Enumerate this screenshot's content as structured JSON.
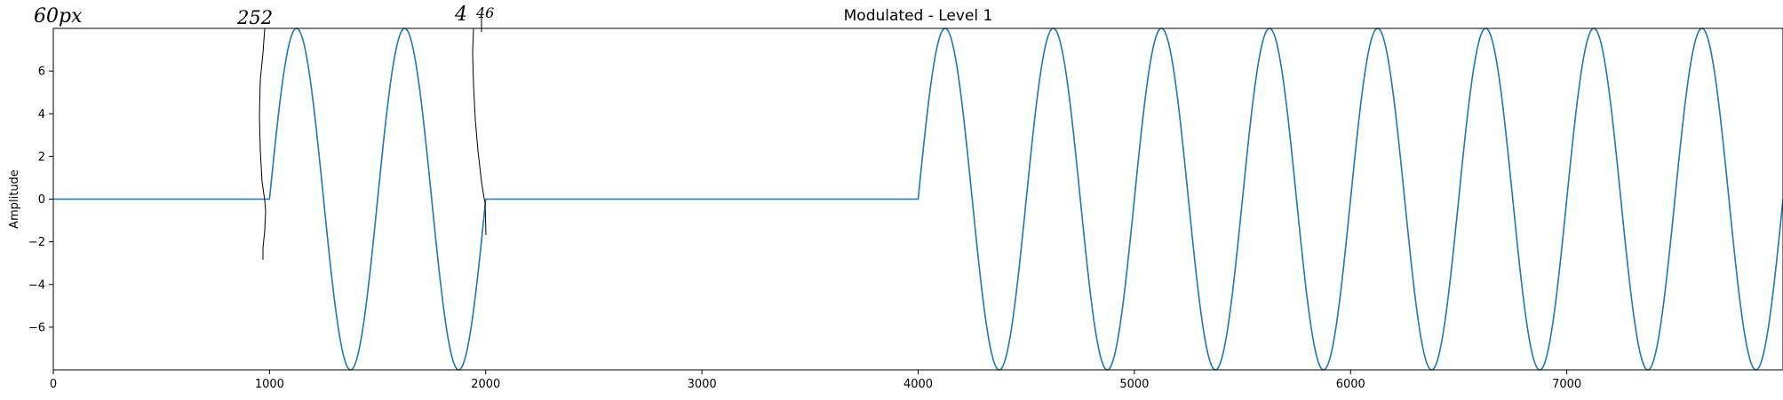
{
  "chart_data": {
    "type": "line",
    "title": "Modulated - Level 1",
    "xlabel": "",
    "ylabel": "Amplitude",
    "xlim": [
      0,
      8000
    ],
    "ylim": [
      -8,
      8
    ],
    "xticks": [
      0,
      1000,
      2000,
      3000,
      4000,
      5000,
      6000,
      7000
    ],
    "yticks": [
      -6,
      -4,
      -2,
      0,
      2,
      4,
      6
    ],
    "grid": false,
    "series": [
      {
        "color": "#1f77b4",
        "segments": [
          {
            "x_start": 0,
            "x_end": 1000,
            "amplitude": 0,
            "period": 0
          },
          {
            "x_start": 1000,
            "x_end": 2000,
            "amplitude": 8,
            "period": 500
          },
          {
            "x_start": 2000,
            "x_end": 4000,
            "amplitude": 0,
            "period": 0
          },
          {
            "x_start": 4000,
            "x_end": 8000,
            "amplitude": 8,
            "period": 500
          }
        ]
      }
    ],
    "annotations": [
      "60px",
      "252",
      "4",
      "46"
    ]
  }
}
